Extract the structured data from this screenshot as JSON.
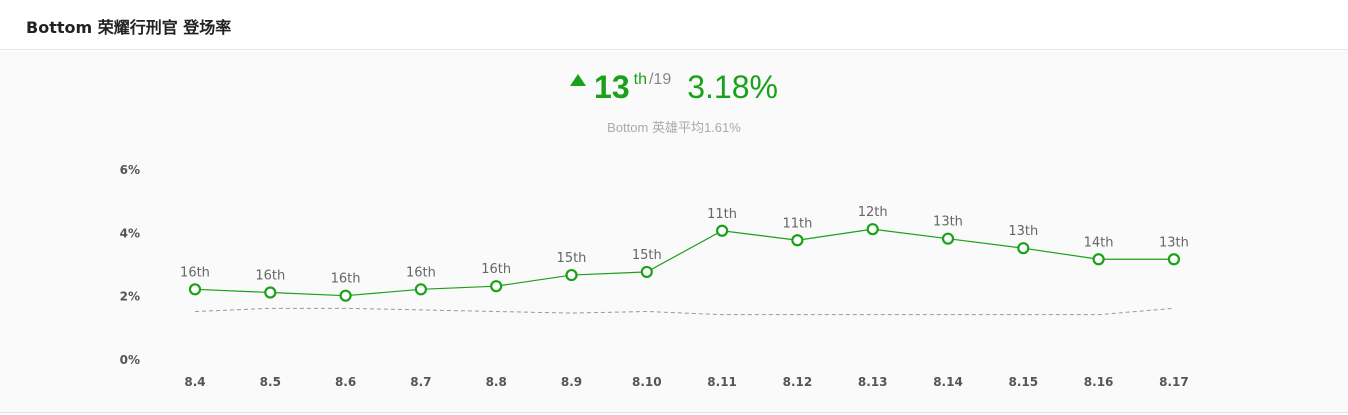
{
  "header": {
    "title": "Bottom 荣耀行刑官 登场率"
  },
  "summary": {
    "rank": "13",
    "rank_suffix": "th",
    "rank_total": "/19",
    "trend": "up",
    "value_text": "3.18%",
    "average_text": "Bottom 英雄平均1.61%"
  },
  "colors": {
    "accent": "#1aa11a",
    "average_line": "#999999"
  },
  "chart_data": {
    "type": "line",
    "categories": [
      "8.4",
      "8.5",
      "8.6",
      "8.7",
      "8.8",
      "8.9",
      "8.10",
      "8.11",
      "8.12",
      "8.13",
      "8.14",
      "8.15",
      "8.16",
      "8.17"
    ],
    "series": [
      {
        "values": [
          2.2,
          2.1,
          2.0,
          2.2,
          2.3,
          2.65,
          2.75,
          4.05,
          3.75,
          4.1,
          3.8,
          3.5,
          3.15,
          3.15
        ],
        "point_labels": [
          "16th",
          "16th",
          "16th",
          "16th",
          "16th",
          "15th",
          "15th",
          "11th",
          "11th",
          "12th",
          "13th",
          "13th",
          "14th",
          "13th"
        ],
        "color": "#1aa11a",
        "marker": "hollow-circle"
      },
      {
        "values": [
          1.5,
          1.6,
          1.6,
          1.55,
          1.5,
          1.45,
          1.5,
          1.4,
          1.4,
          1.4,
          1.4,
          1.4,
          1.4,
          1.6
        ],
        "color": "#999999",
        "style": "dashed"
      }
    ],
    "yticks": [
      "0%",
      "2%",
      "4%",
      "6%"
    ],
    "ylim": [
      0,
      6
    ],
    "grid": false,
    "legend": "none"
  }
}
